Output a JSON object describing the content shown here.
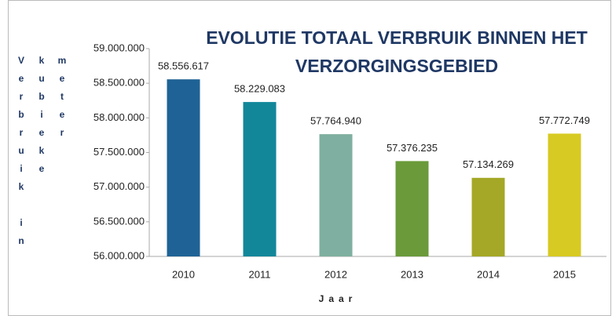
{
  "chart_data": {
    "type": "bar",
    "title": "EVOLUTIE TOTAAL VERBRUIK BINNEN HET VERZORGINGSGEBIED",
    "x_label": "Jaar",
    "y_label": "Verbruik in kubieke meter",
    "categories": [
      "2010",
      "2011",
      "2012",
      "2013",
      "2014",
      "2015"
    ],
    "values": [
      58556617,
      58229083,
      57764940,
      57376235,
      57134269,
      57772749
    ],
    "value_labels": [
      "58.556.617",
      "58.229.083",
      "57.764.940",
      "57.376.235",
      "57.134.269",
      "57.772.749"
    ],
    "colors": [
      "#1f6396",
      "#12879a",
      "#7fafa0",
      "#6a9a3a",
      "#a4a826",
      "#d7ca22"
    ],
    "ylim": [
      56000000,
      59000000
    ],
    "yticks": [
      {
        "value": 56000000,
        "label": "56.000.000"
      },
      {
        "value": 56500000,
        "label": "56.500.000"
      },
      {
        "value": 57000000,
        "label": "57.000.000"
      },
      {
        "value": 57500000,
        "label": "57.500.000"
      },
      {
        "value": 58000000,
        "label": "58.000.000"
      },
      {
        "value": 58500000,
        "label": "58.500.000"
      },
      {
        "value": 59000000,
        "label": "59.000.000"
      }
    ]
  }
}
